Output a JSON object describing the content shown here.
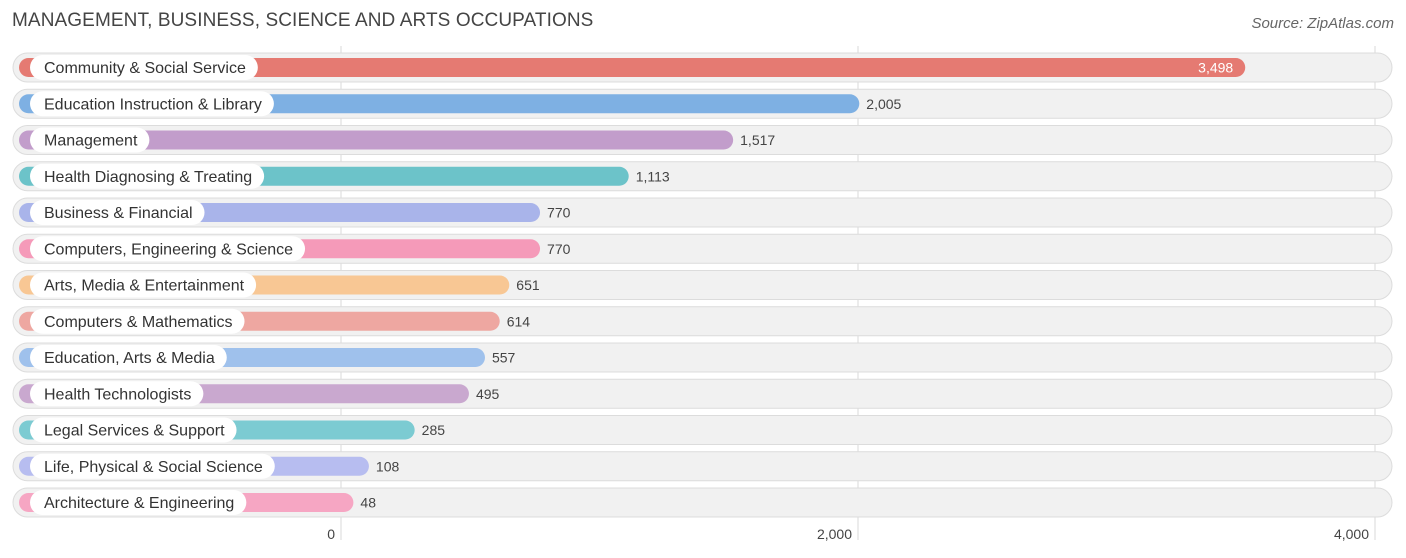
{
  "chart_data": {
    "type": "bar",
    "orientation": "horizontal",
    "title": "MANAGEMENT, BUSINESS, SCIENCE AND ARTS OCCUPATIONS",
    "source": "Source: ZipAtlas.com",
    "categories": [
      "Community & Social Service",
      "Education Instruction & Library",
      "Management",
      "Health Diagnosing & Treating",
      "Business & Financial",
      "Computers, Engineering & Science",
      "Arts, Media & Entertainment",
      "Computers & Mathematics",
      "Education, Arts & Media",
      "Health Technologists",
      "Legal Services & Support",
      "Life, Physical & Social Science",
      "Architecture & Engineering"
    ],
    "values": [
      3498,
      2005,
      1517,
      1113,
      770,
      770,
      651,
      614,
      557,
      495,
      285,
      108,
      48
    ],
    "value_labels": [
      "3,498",
      "2,005",
      "1,517",
      "1,113",
      "770",
      "770",
      "651",
      "614",
      "557",
      "495",
      "285",
      "108",
      "48"
    ],
    "colors": [
      "#e57a72",
      "#7eb0e3",
      "#c29dcb",
      "#6cc3c9",
      "#a9b4ea",
      "#f59ab9",
      "#f8c794",
      "#eea7a1",
      "#9fc1ec",
      "#c9a8cf",
      "#7ccbd2",
      "#b7bdf0",
      "#f6a6c3"
    ],
    "xlim": [
      0,
      4000
    ],
    "xticks": [
      0,
      2000,
      4000
    ],
    "xtick_labels": [
      "0",
      "2,000",
      "4,000"
    ],
    "grid": true
  }
}
